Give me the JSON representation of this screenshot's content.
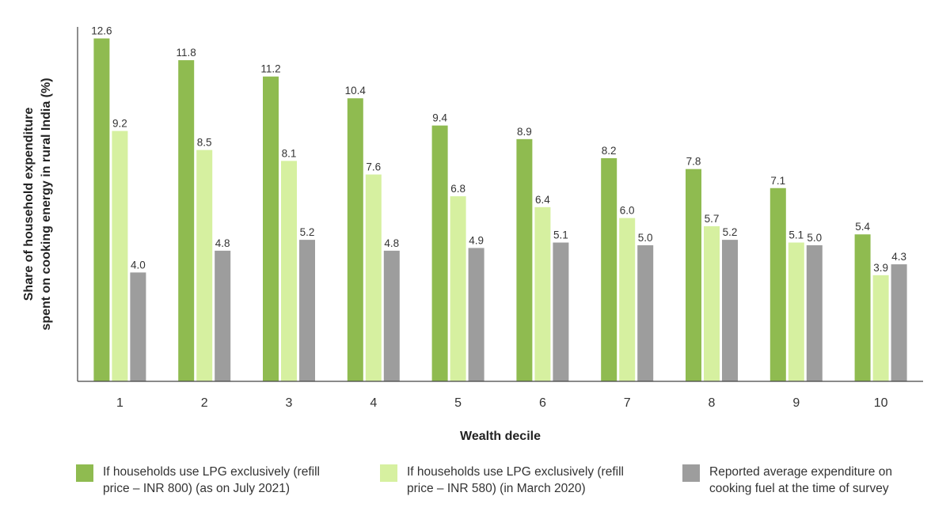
{
  "chart_data": {
    "type": "bar",
    "xlabel": "Wealth decile",
    "ylabel_line1": "Share of household expenditure",
    "ylabel_line2": "spent on cooking energy in rural India (%)",
    "categories": [
      "1",
      "2",
      "3",
      "4",
      "5",
      "6",
      "7",
      "8",
      "9",
      "10"
    ],
    "ylim": [
      0,
      13
    ],
    "grid": false,
    "legend_position": "bottom",
    "series": [
      {
        "name": "If households use LPG exclusively (refill price – INR 800) (as on July 2021)",
        "color": "#8fbb50",
        "values": [
          12.6,
          11.8,
          11.2,
          10.4,
          9.4,
          8.9,
          8.2,
          7.8,
          7.1,
          5.4
        ],
        "labels": [
          "12.6",
          "11.8",
          "11.2",
          "10.4",
          "9.4",
          "8.9",
          "8.2",
          "7.8",
          "7.1",
          "5.4"
        ]
      },
      {
        "name": "If households use LPG exclusively (refill price – INR 580) (in March 2020)",
        "color": "#d6f0a0",
        "values": [
          9.2,
          8.5,
          8.1,
          7.6,
          6.8,
          6.4,
          6.0,
          5.7,
          5.1,
          3.9
        ],
        "labels": [
          "9.2",
          "8.5",
          "8.1",
          "7.6",
          "6.8",
          "6.4",
          "6.0",
          "5.7",
          "5.1",
          "3.9"
        ]
      },
      {
        "name": "Reported average expenditure on cooking fuel at the time of survey",
        "color": "#9d9d9d",
        "values": [
          4.0,
          4.8,
          5.2,
          4.8,
          4.9,
          5.1,
          5.0,
          5.2,
          5.0,
          4.3
        ],
        "labels": [
          "4.0",
          "4.8",
          "5.2",
          "4.8",
          "4.9",
          "5.1",
          "5.0",
          "5.2",
          "5.0",
          "4.3"
        ]
      }
    ]
  },
  "legend": [
    {
      "text": "If households use LPG exclusively (refill\nprice – INR 800) (as on July 2021)",
      "color": "#8fbb50"
    },
    {
      "text": "If households use LPG exclusively (refill\nprice – INR 580) (in March 2020)",
      "color": "#d6f0a0"
    },
    {
      "text": "Reported average expenditure on\ncooking fuel at the time of survey",
      "color": "#9d9d9d"
    }
  ]
}
